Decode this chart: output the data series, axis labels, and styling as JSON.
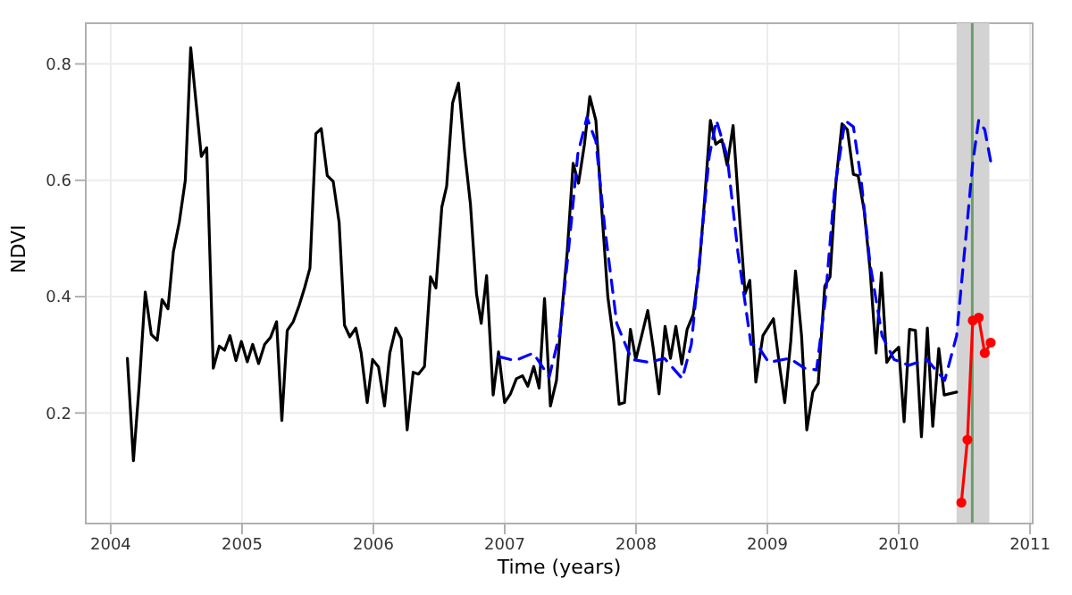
{
  "chart_data": {
    "type": "line",
    "xlabel": "Time (years)",
    "ylabel": "NDVI",
    "xlim": [
      2003.81,
      2011.02
    ],
    "ylim": [
      0.01,
      0.87
    ],
    "xticks": [
      2004,
      2005,
      2006,
      2007,
      2008,
      2009,
      2010,
      2011
    ],
    "yticks": [
      0.2,
      0.4,
      0.6,
      0.8
    ],
    "grid": true,
    "legend": false,
    "bands": [
      {
        "axis": "x",
        "from": 2010.44,
        "to": 2010.69,
        "color": "#d3d3d3"
      }
    ],
    "ref_lines": [
      {
        "axis": "x",
        "value": 2010.56,
        "color": "#6a9e6a",
        "line_style": "solid"
      }
    ],
    "series": [
      {
        "color": "#000000",
        "line_style": "solid",
        "marker": "none",
        "x": [
          2004.127,
          2004.173,
          2004.218,
          2004.263,
          2004.309,
          2004.354,
          2004.391,
          2004.436,
          2004.477,
          2004.522,
          2004.568,
          2004.609,
          2004.65,
          2004.69,
          2004.731,
          2004.781,
          2004.827,
          2004.867,
          2004.908,
          2004.954,
          2004.995,
          2005.04,
          2005.081,
          2005.126,
          2005.172,
          2005.217,
          2005.263,
          2005.303,
          2005.344,
          2005.39,
          2005.435,
          2005.476,
          2005.517,
          2005.562,
          2005.603,
          2005.649,
          2005.694,
          2005.739,
          2005.78,
          2005.821,
          2005.866,
          2005.907,
          2005.953,
          2005.994,
          2006.039,
          2006.085,
          2006.125,
          2006.171,
          2006.212,
          2006.257,
          2006.303,
          2006.343,
          2006.389,
          2006.435,
          2006.476,
          2006.521,
          2006.558,
          2006.603,
          2006.648,
          2006.694,
          2006.739,
          2006.785,
          2006.821,
          2006.862,
          2006.912,
          2006.953,
          2006.999,
          2007.044,
          2007.089,
          2007.135,
          2007.176,
          2007.221,
          2007.262,
          2007.303,
          2007.348,
          2007.394,
          2007.435,
          2007.476,
          2007.521,
          2007.562,
          2007.607,
          2007.648,
          2007.694,
          2007.739,
          2007.785,
          2007.83,
          2007.871,
          2007.912,
          2007.957,
          2007.998,
          2008.043,
          2008.089,
          2008.13,
          2008.175,
          2008.221,
          2008.262,
          2008.303,
          2008.348,
          2008.389,
          2008.435,
          2008.48,
          2008.521,
          2008.566,
          2008.607,
          2008.653,
          2008.694,
          2008.739,
          2008.784,
          2008.83,
          2008.866,
          2008.912,
          2008.966,
          2009.046,
          2009.092,
          2009.132,
          2009.178,
          2009.214,
          2009.26,
          2009.3,
          2009.346,
          2009.387,
          2009.437,
          2009.477,
          2009.523,
          2009.568,
          2009.609,
          2009.655,
          2009.691,
          2009.736,
          2009.782,
          2009.827,
          2009.868,
          2009.909,
          2009.955,
          2010.0,
          2010.041,
          2010.082,
          2010.127,
          2010.173,
          2010.218,
          2010.259,
          2010.305,
          2010.346,
          2010.441
        ],
        "values": [
          0.294,
          0.118,
          0.251,
          0.408,
          0.335,
          0.325,
          0.395,
          0.379,
          0.477,
          0.528,
          0.6,
          0.828,
          0.733,
          0.641,
          0.656,
          0.277,
          0.315,
          0.308,
          0.333,
          0.29,
          0.323,
          0.288,
          0.318,
          0.285,
          0.318,
          0.33,
          0.357,
          0.187,
          0.342,
          0.357,
          0.385,
          0.415,
          0.449,
          0.68,
          0.689,
          0.608,
          0.598,
          0.528,
          0.351,
          0.331,
          0.346,
          0.303,
          0.218,
          0.292,
          0.279,
          0.212,
          0.303,
          0.346,
          0.328,
          0.171,
          0.27,
          0.267,
          0.28,
          0.434,
          0.415,
          0.554,
          0.59,
          0.733,
          0.767,
          0.651,
          0.559,
          0.405,
          0.354,
          0.436,
          0.231,
          0.305,
          0.218,
          0.233,
          0.259,
          0.264,
          0.246,
          0.28,
          0.243,
          0.397,
          0.212,
          0.256,
          0.374,
          0.477,
          0.629,
          0.595,
          0.662,
          0.744,
          0.703,
          0.549,
          0.4,
          0.323,
          0.215,
          0.218,
          0.344,
          0.292,
          0.333,
          0.376,
          0.313,
          0.233,
          0.349,
          0.294,
          0.349,
          0.284,
          0.344,
          0.369,
          0.449,
          0.564,
          0.703,
          0.662,
          0.67,
          0.626,
          0.694,
          0.549,
          0.405,
          0.428,
          0.253,
          0.333,
          0.362,
          0.282,
          0.218,
          0.323,
          0.444,
          0.333,
          0.171,
          0.236,
          0.251,
          0.418,
          0.434,
          0.6,
          0.697,
          0.687,
          0.61,
          0.608,
          0.549,
          0.446,
          0.303,
          0.441,
          0.287,
          0.303,
          0.313,
          0.185,
          0.344,
          0.342,
          0.159,
          0.346,
          0.177,
          0.311,
          0.231,
          0.236
        ]
      },
      {
        "color": "#0000ff",
        "line_style": "dashed",
        "marker": "none",
        "x": [
          2006.953,
          2007.08,
          2007.217,
          2007.339,
          2007.421,
          2007.489,
          2007.557,
          2007.626,
          2007.694,
          2007.762,
          2007.853,
          2007.966,
          2008.103,
          2008.216,
          2008.352,
          2008.421,
          2008.489,
          2008.557,
          2008.612,
          2008.694,
          2008.775,
          2008.875,
          2008.92,
          2009.01,
          2009.169,
          2009.283,
          2009.374,
          2009.441,
          2009.509,
          2009.591,
          2009.655,
          2009.714,
          2009.782,
          2009.873,
          2009.964,
          2010.077,
          2010.214,
          2010.35,
          2010.441,
          2010.509,
          2010.564,
          2010.609,
          2010.655,
          2010.7
        ],
        "values": [
          0.297,
          0.29,
          0.303,
          0.262,
          0.339,
          0.487,
          0.646,
          0.708,
          0.667,
          0.518,
          0.354,
          0.292,
          0.287,
          0.294,
          0.259,
          0.318,
          0.477,
          0.641,
          0.703,
          0.641,
          0.477,
          0.318,
          0.318,
          0.287,
          0.294,
          0.277,
          0.274,
          0.395,
          0.579,
          0.703,
          0.692,
          0.6,
          0.456,
          0.333,
          0.292,
          0.282,
          0.292,
          0.256,
          0.333,
          0.497,
          0.631,
          0.703,
          0.687,
          0.633
        ]
      },
      {
        "color": "#ff0000",
        "line_style": "solid",
        "marker": "circle",
        "x": [
          2010.477,
          2010.523,
          2010.564,
          2010.609,
          2010.655,
          2010.7
        ],
        "values": [
          0.046,
          0.154,
          0.359,
          0.364,
          0.303,
          0.321
        ]
      }
    ]
  }
}
